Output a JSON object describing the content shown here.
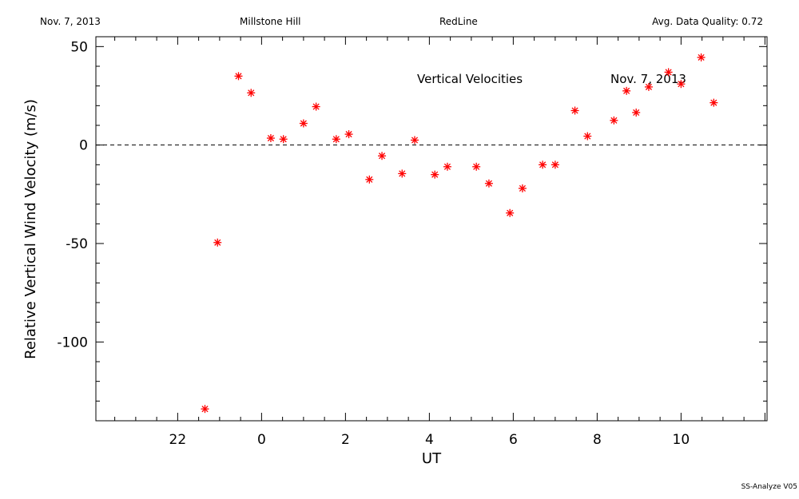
{
  "header": {
    "date": "Nov. 7, 2013",
    "site": "Millstone Hill",
    "instrument": "RedLine",
    "quality": "Avg. Data Quality: 0.72"
  },
  "footer": {
    "software": "SS-Analyze V05"
  },
  "chart_data": {
    "type": "scatter",
    "xlabel": "UT",
    "ylabel": "Relative Vertical Wind Velocity (m/s)",
    "annotations": [
      "Vertical Velocities",
      "Nov. 7, 2013"
    ],
    "x_ticks": [
      "22",
      "0",
      "2",
      "4",
      "6",
      "8",
      "10"
    ],
    "y_ticks": [
      "50",
      "0",
      "-50",
      "-100"
    ],
    "x_tick_values": [
      -2,
      0,
      2,
      4,
      6,
      8,
      10
    ],
    "y_tick_values": [
      50,
      0,
      -50,
      -100
    ],
    "xlim": [
      -3.95,
      12.05
    ],
    "ylim": [
      -140,
      55
    ],
    "zero_line": "dashed",
    "marker": "asterisk",
    "marker_color": "#ff0000",
    "series": [
      {
        "points": [
          [
            -1.35,
            -134
          ],
          [
            -1.05,
            -49.5
          ],
          [
            -0.55,
            35
          ],
          [
            -0.25,
            26.5
          ],
          [
            0.22,
            3.5
          ],
          [
            0.52,
            3
          ],
          [
            1.0,
            11
          ],
          [
            1.3,
            19.5
          ],
          [
            1.78,
            3
          ],
          [
            2.08,
            5.5
          ],
          [
            2.57,
            -17.5
          ],
          [
            2.87,
            -5.5
          ],
          [
            3.35,
            -14.5
          ],
          [
            3.65,
            2.5
          ],
          [
            4.13,
            -15
          ],
          [
            4.43,
            -11
          ],
          [
            5.12,
            -11
          ],
          [
            5.42,
            -19.5
          ],
          [
            5.92,
            -34.5
          ],
          [
            6.22,
            -22
          ],
          [
            6.7,
            -10
          ],
          [
            7.0,
            -10
          ],
          [
            7.47,
            17.5
          ],
          [
            7.77,
            4.5
          ],
          [
            8.4,
            12.5
          ],
          [
            8.7,
            27.5
          ],
          [
            8.93,
            16.5
          ],
          [
            9.23,
            29.5
          ],
          [
            9.7,
            37
          ],
          [
            10.0,
            31
          ],
          [
            10.48,
            44.5
          ],
          [
            10.78,
            21.5
          ]
        ]
      }
    ]
  }
}
